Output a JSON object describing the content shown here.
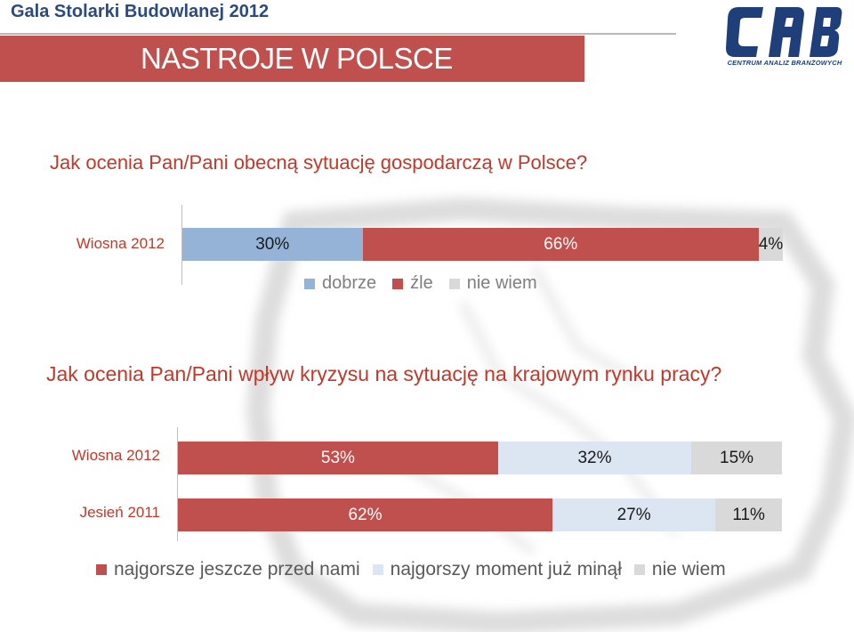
{
  "header": {
    "event": "Gala Stolarki Budowlanej 2012",
    "title": "NASTROJE W POLSCE",
    "logo_text": "CAB",
    "logo_subtitle": "CENTRUM ANALIZ BRANŻOWYCH"
  },
  "colors": {
    "red": "#c0504d",
    "blue": "#95b3d7",
    "light_blue": "#dce6f2",
    "gray": "#d9d9d9",
    "question": "#c0392b"
  },
  "chart_data": [
    {
      "type": "bar",
      "orientation": "horizontal",
      "stacked": true,
      "percent": true,
      "title": "Jak ocenia Pan/Pani obecną sytuację gospodarczą w Polsce?",
      "categories": [
        "Wiosna 2012"
      ],
      "series": [
        {
          "name": "dobrze",
          "values": [
            30
          ],
          "labels": [
            "30%"
          ],
          "color": "#95b3d7"
        },
        {
          "name": "źle",
          "values": [
            66
          ],
          "labels": [
            "66%"
          ],
          "color": "#c0504d"
        },
        {
          "name": "nie wiem",
          "values": [
            4
          ],
          "labels": [
            "4%"
          ],
          "color": "#d9d9d9"
        }
      ],
      "legend": "bottom"
    },
    {
      "type": "bar",
      "orientation": "horizontal",
      "stacked": true,
      "percent": true,
      "title": "Jak ocenia Pan/Pani wpływ kryzysu na sytuację na krajowym rynku pracy?",
      "categories": [
        "Wiosna 2012",
        "Jesień 2011"
      ],
      "series": [
        {
          "name": "najgorsze jeszcze przed nami",
          "values": [
            53,
            62
          ],
          "labels": [
            "53%",
            "62%"
          ],
          "color": "#c0504d"
        },
        {
          "name": "najgorszy moment już minął",
          "values": [
            32,
            27
          ],
          "labels": [
            "32%",
            "27%"
          ],
          "color": "#dce6f2"
        },
        {
          "name": "nie wiem",
          "values": [
            15,
            11
          ],
          "labels": [
            "15%",
            "11%"
          ],
          "color": "#d9d9d9"
        }
      ],
      "legend": "bottom"
    }
  ]
}
